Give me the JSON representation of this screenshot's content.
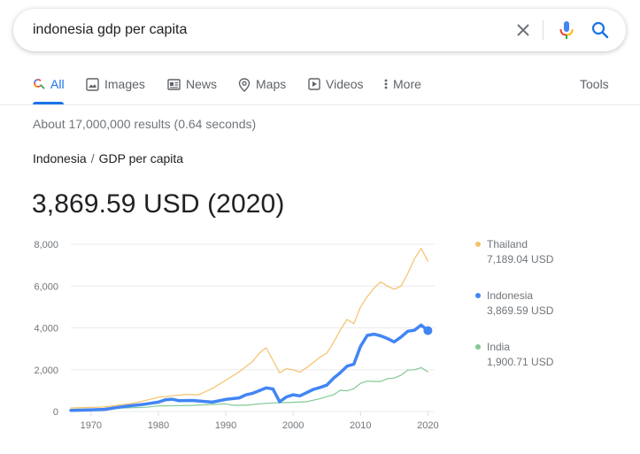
{
  "search": {
    "query": "indonesia gdp per capita"
  },
  "icons": {
    "clear": "close-icon",
    "mic": "microphone-icon",
    "search": "search-icon"
  },
  "tabs": [
    {
      "label": "All",
      "icon": "search-icon",
      "active": true
    },
    {
      "label": "Images",
      "icon": "image-icon"
    },
    {
      "label": "News",
      "icon": "news-icon"
    },
    {
      "label": "Maps",
      "icon": "map-pin-icon"
    },
    {
      "label": "Videos",
      "icon": "video-icon"
    },
    {
      "label": "More",
      "icon": "more-vert-icon"
    }
  ],
  "tools_label": "Tools",
  "result_stats": "About 17,000,000 results (0.64 seconds)",
  "breadcrumb": {
    "country": "Indonesia",
    "separator": "/",
    "metric": "GDP per capita"
  },
  "headline_value": "3,869.59 USD (2020)",
  "colors": {
    "accent": "#1a73e8",
    "indonesia": "#4285f4",
    "thailand": "#f6c16b",
    "india": "#81c995"
  },
  "chart_data": {
    "type": "line",
    "xlim": [
      1967,
      2021
    ],
    "ylim": [
      0,
      8000
    ],
    "yticks": [
      "0",
      "2,000",
      "4,000",
      "6,000",
      "8,000"
    ],
    "ytick_values": [
      0,
      2000,
      4000,
      6000,
      8000
    ],
    "xticks": [
      "1970",
      "1980",
      "1990",
      "2000",
      "2010",
      "2020"
    ],
    "xtick_values": [
      1970,
      1980,
      1990,
      2000,
      2010,
      2020
    ],
    "grid": true,
    "legend_position": "right",
    "series": [
      {
        "name": "Thailand",
        "latest": "7,189.04 USD",
        "color": "#f6c16b",
        "points": [
          [
            1967,
            170
          ],
          [
            1970,
            195
          ],
          [
            1972,
            215
          ],
          [
            1974,
            300
          ],
          [
            1976,
            380
          ],
          [
            1978,
            520
          ],
          [
            1980,
            680
          ],
          [
            1982,
            750
          ],
          [
            1984,
            820
          ],
          [
            1986,
            800
          ],
          [
            1988,
            1100
          ],
          [
            1990,
            1500
          ],
          [
            1992,
            1900
          ],
          [
            1994,
            2400
          ],
          [
            1995,
            2800
          ],
          [
            1996,
            3050
          ],
          [
            1997,
            2450
          ],
          [
            1998,
            1850
          ],
          [
            1999,
            2050
          ],
          [
            2000,
            2000
          ],
          [
            2001,
            1880
          ],
          [
            2002,
            2100
          ],
          [
            2003,
            2350
          ],
          [
            2004,
            2600
          ],
          [
            2005,
            2800
          ],
          [
            2006,
            3300
          ],
          [
            2007,
            3900
          ],
          [
            2008,
            4400
          ],
          [
            2009,
            4200
          ],
          [
            2010,
            5000
          ],
          [
            2011,
            5500
          ],
          [
            2012,
            5900
          ],
          [
            2013,
            6200
          ],
          [
            2014,
            6000
          ],
          [
            2015,
            5850
          ],
          [
            2016,
            6000
          ],
          [
            2017,
            6600
          ],
          [
            2018,
            7300
          ],
          [
            2019,
            7800
          ],
          [
            2020,
            7189
          ]
        ]
      },
      {
        "name": "Indonesia",
        "latest": "3,869.59 USD",
        "color": "#4285f4",
        "points": [
          [
            1967,
            55
          ],
          [
            1970,
            80
          ],
          [
            1972,
            100
          ],
          [
            1974,
            200
          ],
          [
            1976,
            280
          ],
          [
            1978,
            350
          ],
          [
            1980,
            450
          ],
          [
            1981,
            560
          ],
          [
            1982,
            590
          ],
          [
            1983,
            520
          ],
          [
            1985,
            530
          ],
          [
            1987,
            480
          ],
          [
            1988,
            450
          ],
          [
            1990,
            580
          ],
          [
            1992,
            650
          ],
          [
            1993,
            800
          ],
          [
            1994,
            870
          ],
          [
            1995,
            1000
          ],
          [
            1996,
            1130
          ],
          [
            1997,
            1080
          ],
          [
            1998,
            470
          ],
          [
            1999,
            700
          ],
          [
            2000,
            800
          ],
          [
            2001,
            750
          ],
          [
            2002,
            900
          ],
          [
            2003,
            1060
          ],
          [
            2004,
            1150
          ],
          [
            2005,
            1260
          ],
          [
            2006,
            1590
          ],
          [
            2007,
            1860
          ],
          [
            2008,
            2170
          ],
          [
            2009,
            2260
          ],
          [
            2010,
            3120
          ],
          [
            2011,
            3640
          ],
          [
            2012,
            3700
          ],
          [
            2013,
            3620
          ],
          [
            2014,
            3490
          ],
          [
            2015,
            3330
          ],
          [
            2016,
            3560
          ],
          [
            2017,
            3840
          ],
          [
            2018,
            3890
          ],
          [
            2019,
            4135
          ],
          [
            2020,
            3870
          ]
        ]
      },
      {
        "name": "India",
        "latest": "1,900.71 USD",
        "color": "#81c995",
        "points": [
          [
            1967,
            95
          ],
          [
            1970,
            112
          ],
          [
            1974,
            160
          ],
          [
            1978,
            200
          ],
          [
            1980,
            265
          ],
          [
            1985,
            290
          ],
          [
            1988,
            340
          ],
          [
            1990,
            370
          ],
          [
            1991,
            300
          ],
          [
            1993,
            300
          ],
          [
            1995,
            370
          ],
          [
            1997,
            410
          ],
          [
            2000,
            440
          ],
          [
            2002,
            470
          ],
          [
            2004,
            620
          ],
          [
            2006,
            800
          ],
          [
            2007,
            1020
          ],
          [
            2008,
            990
          ],
          [
            2009,
            1090
          ],
          [
            2010,
            1350
          ],
          [
            2011,
            1450
          ],
          [
            2012,
            1440
          ],
          [
            2013,
            1440
          ],
          [
            2014,
            1570
          ],
          [
            2015,
            1600
          ],
          [
            2016,
            1730
          ],
          [
            2017,
            1980
          ],
          [
            2018,
            2000
          ],
          [
            2019,
            2100
          ],
          [
            2020,
            1901
          ]
        ]
      }
    ]
  }
}
